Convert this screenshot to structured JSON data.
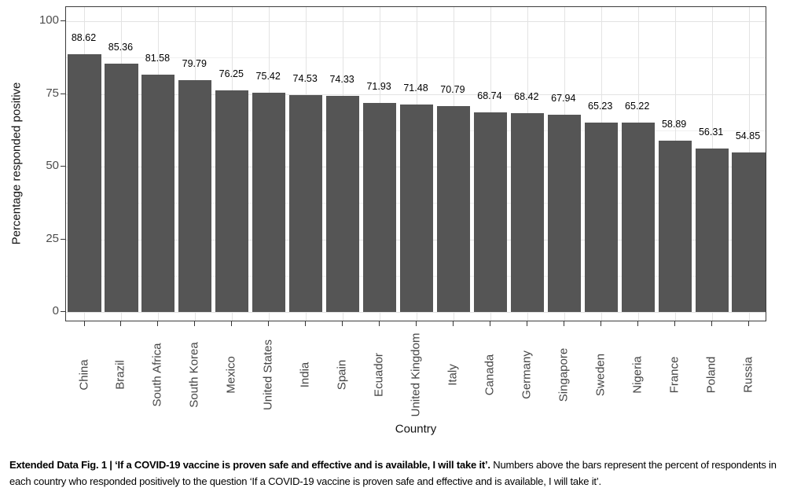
{
  "chart_data": {
    "type": "bar",
    "title": "",
    "xlabel": "Country",
    "ylabel": "Percentage responded positive",
    "categories": [
      "China",
      "Brazil",
      "South Africa",
      "South Korea",
      "Mexico",
      "United States",
      "India",
      "Spain",
      "Ecuador",
      "United Kingdom",
      "Italy",
      "Canada",
      "Germany",
      "Singapore",
      "Sweden",
      "Nigeria",
      "France",
      "Poland",
      "Russia"
    ],
    "values": [
      88.62,
      85.36,
      81.58,
      79.79,
      76.25,
      75.42,
      74.53,
      74.33,
      71.93,
      71.48,
      70.79,
      68.74,
      68.42,
      67.94,
      65.23,
      65.22,
      58.89,
      56.31,
      54.85
    ],
    "value_labels": [
      "88.62",
      "85.36",
      "81.58",
      "79.79",
      "76.25",
      "75.42",
      "74.53",
      "74.33",
      "71.93",
      "71.48",
      "70.79",
      "68.74",
      "68.42",
      "67.94",
      "65.23",
      "65.22",
      "58.89",
      "56.31",
      "54.85"
    ],
    "ylim": [
      -3.5,
      104.9
    ],
    "yticks": [
      0,
      25,
      50,
      75,
      100
    ],
    "yticks_minor": [
      12.5,
      37.5,
      62.5,
      87.5
    ],
    "grid": true,
    "legend": false,
    "colors": {
      "bar": "#555555",
      "grid_major": "#e3e3e3",
      "grid_minor": "#f0f0f0",
      "panel_border": "#3c3c3c",
      "tick": "#333333",
      "axis_text": "#4d4d4d",
      "value_text": "#000000"
    }
  },
  "caption": {
    "bold": "Extended Data Fig. 1 | ‘If a COVID-19 vaccine is proven safe and effective and is available, I will take it’.",
    "regular": " Numbers above the bars represent the percent of respondents in each country who responded positively to the question ‘If a COVID-19 vaccine is proven safe and effective and is available, I will take it’."
  }
}
